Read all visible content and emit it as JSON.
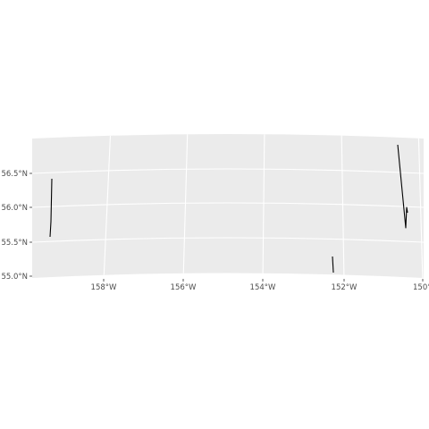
{
  "map": {
    "panel_color": "#ebebeb",
    "gridline_color": "#ffffff",
    "track_color": "#000000",
    "y_labels": [
      "56.5°N",
      "56.0°N",
      "55.5°N",
      "55.0°N"
    ],
    "x_labels": [
      "158°W",
      "156°W",
      "154°W",
      "152°W",
      "150°W"
    ]
  },
  "chart_data": {
    "type": "line",
    "xlabel": "",
    "ylabel": "",
    "x_ticks": [
      -158,
      -156,
      -154,
      -152,
      -150
    ],
    "y_ticks": [
      55.0,
      55.5,
      56.0,
      56.5
    ],
    "xlim": [
      -159.8,
      -149.9
    ],
    "ylim": [
      55.0,
      57.0
    ],
    "grid": true,
    "series": [
      {
        "lon": [
          -159.35,
          -159.38,
          -159.42
        ],
        "lat": [
          56.45,
          55.9,
          55.45
        ]
      },
      {
        "lon": [
          -150.55,
          -150.35,
          -150.4,
          -150.3
        ],
        "lat": [
          57.0,
          55.7,
          56.0,
          55.9
        ]
      },
      {
        "lon": [
          -152.2,
          -152.2
        ],
        "lat": [
          55.3,
          55.05
        ]
      }
    ]
  }
}
